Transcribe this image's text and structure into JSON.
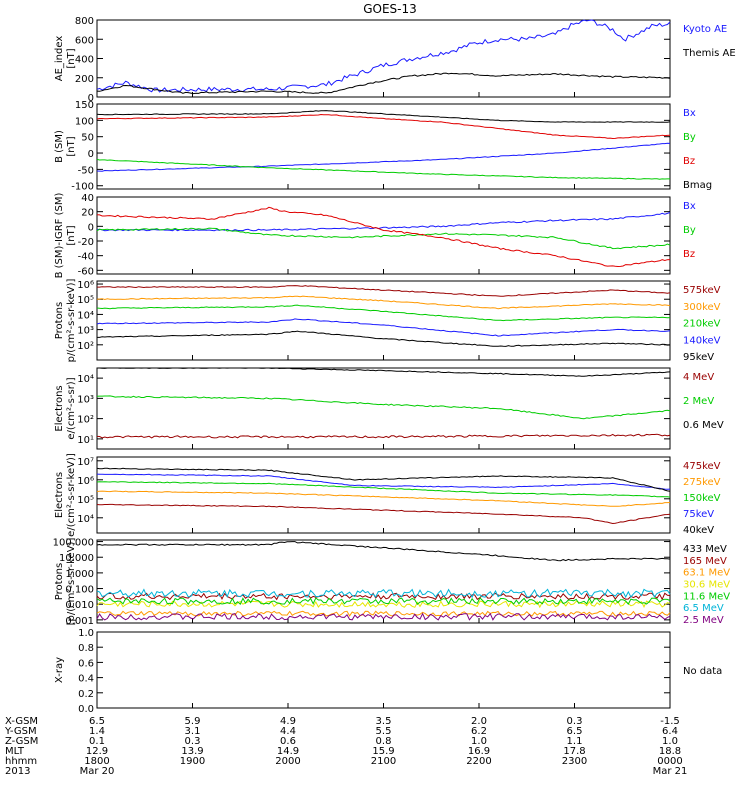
{
  "title": "GOES-13",
  "colors": {
    "black": "#000000",
    "blue": "#1a1aff",
    "red": "#e00000",
    "green": "#00cc00",
    "orange": "#ff9900",
    "darkred": "#990000",
    "yellow": "#e6e600",
    "cyan": "#00b4d8",
    "purple": "#800080",
    "navy": "#0000aa"
  },
  "chart_data": [
    {
      "id": "ae",
      "type": "line",
      "ylabel": [
        "AE_index",
        "[nT]"
      ],
      "ylim": [
        0,
        800
      ],
      "yticks": [
        {
          "v": 0,
          "t": "0"
        },
        {
          "v": 200,
          "t": "200"
        },
        {
          "v": 400,
          "t": "400"
        },
        {
          "v": 600,
          "t": "600"
        },
        {
          "v": 800,
          "t": "800"
        }
      ],
      "series": [
        {
          "name": "Kyoto AE",
          "color": "blue",
          "noise": 25,
          "x": [
            0,
            0.05,
            0.1,
            0.2,
            0.3,
            0.4,
            0.5,
            0.55,
            0.62,
            0.66,
            0.7,
            0.75,
            0.8,
            0.83,
            0.86,
            0.9,
            0.92,
            0.95,
            0.97,
            1
          ],
          "y": [
            80,
            150,
            70,
            80,
            80,
            130,
            330,
            400,
            480,
            560,
            600,
            600,
            650,
            750,
            800,
            700,
            600,
            680,
            740,
            760
          ]
        },
        {
          "name": "Themis AE",
          "color": "black",
          "noise": 8,
          "x": [
            0,
            0.05,
            0.15,
            0.3,
            0.4,
            0.48,
            0.55,
            0.62,
            0.7,
            0.8,
            0.9,
            1
          ],
          "y": [
            60,
            120,
            40,
            60,
            40,
            150,
            220,
            250,
            220,
            240,
            210,
            200
          ]
        }
      ]
    },
    {
      "id": "bsm",
      "type": "line",
      "ylabel": [
        "B (SM)",
        "[nT]"
      ],
      "ylim": [
        -110,
        150
      ],
      "yticks": [
        {
          "v": -100,
          "t": "-100"
        },
        {
          "v": -50,
          "t": "-50"
        },
        {
          "v": 0,
          "t": "0"
        },
        {
          "v": 50,
          "t": "50"
        },
        {
          "v": 100,
          "t": "100"
        },
        {
          "v": 150,
          "t": "150"
        }
      ],
      "series": [
        {
          "name": "Bx",
          "color": "blue",
          "noise": 1,
          "x": [
            0,
            0.3,
            0.6,
            0.8,
            1
          ],
          "y": [
            -55,
            -40,
            -20,
            0,
            30
          ]
        },
        {
          "name": "By",
          "color": "green",
          "noise": 1,
          "x": [
            0,
            0.3,
            0.6,
            0.8,
            1
          ],
          "y": [
            -20,
            -45,
            -65,
            -75,
            -80
          ]
        },
        {
          "name": "Bz",
          "color": "red",
          "noise": 1,
          "x": [
            0,
            0.3,
            0.4,
            0.5,
            0.6,
            0.7,
            0.8,
            0.9,
            1
          ],
          "y": [
            105,
            110,
            118,
            105,
            95,
            75,
            55,
            45,
            55
          ]
        },
        {
          "name": "Bmag",
          "color": "black",
          "noise": 1,
          "x": [
            0,
            0.3,
            0.4,
            0.5,
            0.6,
            0.7,
            0.8,
            0.9,
            1
          ],
          "y": [
            118,
            120,
            130,
            120,
            110,
            100,
            95,
            95,
            95
          ]
        }
      ]
    },
    {
      "id": "bdiff",
      "type": "line",
      "ylabel": [
        "B (SM)-IGRF (SM)",
        "[nT]"
      ],
      "ylim": [
        -65,
        40
      ],
      "yticks": [
        {
          "v": -60,
          "t": "-60"
        },
        {
          "v": -40,
          "t": "-40"
        },
        {
          "v": -20,
          "t": "-20"
        },
        {
          "v": 0,
          "t": "0"
        },
        {
          "v": 20,
          "t": "20"
        },
        {
          "v": 40,
          "t": "40"
        }
      ],
      "series": [
        {
          "name": "Bx",
          "color": "blue",
          "noise": 1,
          "x": [
            0,
            0.3,
            0.5,
            0.6,
            0.7,
            0.8,
            0.9,
            1
          ],
          "y": [
            -5,
            -5,
            -2,
            0,
            5,
            8,
            10,
            18
          ]
        },
        {
          "name": "By",
          "color": "green",
          "noise": 1,
          "x": [
            0,
            0.2,
            0.3,
            0.45,
            0.6,
            0.7,
            0.8,
            0.9,
            1
          ],
          "y": [
            -5,
            -3,
            -12,
            -15,
            -10,
            -12,
            -15,
            -30,
            -25
          ]
        },
        {
          "name": "Bz",
          "color": "red",
          "noise": 1,
          "x": [
            0,
            0.2,
            0.3,
            0.33,
            0.4,
            0.5,
            0.6,
            0.7,
            0.8,
            0.9,
            1
          ],
          "y": [
            15,
            10,
            25,
            20,
            15,
            -5,
            -15,
            -30,
            -40,
            -55,
            -45
          ]
        }
      ]
    },
    {
      "id": "protons_kev",
      "type": "line",
      "log": true,
      "ylabel": [
        "Protons",
        "p/(cm²-s-sr-keV)]"
      ],
      "ylim": [
        1,
        6.2
      ],
      "yticks": [
        {
          "v": 2,
          "t": "10²"
        },
        {
          "v": 3,
          "t": "10³"
        },
        {
          "v": 4,
          "t": "10⁴"
        },
        {
          "v": 5,
          "t": "10⁵"
        },
        {
          "v": 6,
          "t": "10⁶"
        }
      ],
      "series": [
        {
          "name": "575keV",
          "color": "darkred",
          "noise": 0.03,
          "x": [
            0,
            0.3,
            0.35,
            0.5,
            0.7,
            0.9,
            1
          ],
          "y": [
            5.8,
            5.8,
            5.9,
            5.6,
            5.2,
            5.6,
            5.4
          ]
        },
        {
          "name": "300keV",
          "color": "orange",
          "noise": 0.03,
          "x": [
            0,
            0.3,
            0.35,
            0.5,
            0.7,
            0.9,
            1
          ],
          "y": [
            5.0,
            5.1,
            5.2,
            4.9,
            4.4,
            4.7,
            4.6
          ]
        },
        {
          "name": "210keV",
          "color": "green",
          "noise": 0.03,
          "x": [
            0,
            0.3,
            0.35,
            0.5,
            0.7,
            0.9,
            1
          ],
          "y": [
            4.4,
            4.5,
            4.6,
            4.2,
            3.6,
            3.8,
            3.8
          ]
        },
        {
          "name": "140keV",
          "color": "blue",
          "noise": 0.03,
          "x": [
            0,
            0.3,
            0.35,
            0.5,
            0.7,
            0.9,
            1
          ],
          "y": [
            3.4,
            3.5,
            3.7,
            3.3,
            2.6,
            3.0,
            2.9
          ]
        },
        {
          "name": "95keV",
          "color": "black",
          "noise": 0.03,
          "x": [
            0,
            0.3,
            0.35,
            0.5,
            0.7,
            0.9,
            1
          ],
          "y": [
            2.5,
            2.7,
            2.9,
            2.4,
            1.9,
            2.1,
            2.0
          ]
        }
      ]
    },
    {
      "id": "electrons_mev",
      "type": "line",
      "log": true,
      "ylabel": [
        "Electrons",
        "e/(cm²-s-sr)]"
      ],
      "ylim": [
        0.5,
        4.5
      ],
      "yticks": [
        {
          "v": 1,
          "t": "10¹"
        },
        {
          "v": 2,
          "t": "10²"
        },
        {
          "v": 3,
          "t": "10³"
        },
        {
          "v": 4,
          "t": "10⁴"
        }
      ],
      "series": [
        {
          "name": "4 MeV",
          "color": "darkred",
          "noise": 0.05,
          "x": [
            0,
            0.5,
            1
          ],
          "y": [
            1.1,
            1.1,
            1.2
          ]
        },
        {
          "name": "2 MeV",
          "color": "green",
          "noise": 0.03,
          "x": [
            0,
            0.3,
            0.5,
            0.7,
            0.85,
            1
          ],
          "y": [
            3.1,
            3.0,
            2.7,
            2.5,
            2.0,
            2.4
          ]
        },
        {
          "name": "0.6 MeV",
          "color": "black",
          "noise": 0.02,
          "x": [
            0,
            0.3,
            0.6,
            0.85,
            1
          ],
          "y": [
            4.5,
            4.5,
            4.3,
            4.1,
            4.3
          ]
        }
      ]
    },
    {
      "id": "electrons_kev",
      "type": "line",
      "log": true,
      "ylabel": [
        "Electrons",
        "e/(cm²-s-sr-keV)]"
      ],
      "ylim": [
        3.2,
        7.2
      ],
      "yticks": [
        {
          "v": 4,
          "t": "10⁴"
        },
        {
          "v": 5,
          "t": "10⁵"
        },
        {
          "v": 6,
          "t": "10⁶"
        },
        {
          "v": 7,
          "t": "10⁷"
        }
      ],
      "series": [
        {
          "name": "475keV",
          "color": "darkred",
          "noise": 0.02,
          "x": [
            0,
            0.3,
            0.7,
            0.85,
            0.9,
            1
          ],
          "y": [
            4.7,
            4.6,
            4.2,
            4.0,
            3.7,
            4.2
          ]
        },
        {
          "name": "275keV",
          "color": "orange",
          "noise": 0.02,
          "x": [
            0,
            0.3,
            0.7,
            0.9,
            1
          ],
          "y": [
            5.4,
            5.3,
            4.9,
            4.6,
            4.8
          ]
        },
        {
          "name": "150keV",
          "color": "green",
          "noise": 0.02,
          "x": [
            0,
            0.3,
            0.7,
            0.9,
            1
          ],
          "y": [
            5.9,
            5.8,
            5.3,
            5.2,
            5.1
          ]
        },
        {
          "name": "75keV",
          "color": "blue",
          "noise": 0.02,
          "x": [
            0,
            0.3,
            0.45,
            0.7,
            0.9,
            1
          ],
          "y": [
            6.3,
            6.2,
            5.7,
            5.6,
            5.8,
            5.5
          ]
        },
        {
          "name": "40keV",
          "color": "black",
          "noise": 0.02,
          "x": [
            0,
            0.3,
            0.45,
            0.7,
            0.9,
            1
          ],
          "y": [
            6.6,
            6.5,
            6.0,
            6.2,
            6.1,
            5.4
          ]
        }
      ]
    },
    {
      "id": "protons_mev",
      "type": "line",
      "log": true,
      "ylabel": [
        "Protons",
        "[p/(cm²-s-sr-keV)]"
      ],
      "ylim": [
        -3.2,
        2.1
      ],
      "yticks": [
        {
          "v": -3,
          "t": "0.001"
        },
        {
          "v": -2,
          "t": "0.010"
        },
        {
          "v": -1,
          "t": "0.100"
        },
        {
          "v": 0,
          "t": "1.000"
        },
        {
          "v": 1,
          "t": "10.000"
        },
        {
          "v": 2,
          "t": "100.000"
        }
      ],
      "series": [
        {
          "name": "433 MeV",
          "color": "black",
          "noise": 0.04,
          "x": [
            0,
            0.3,
            0.33,
            0.5,
            0.7,
            0.8,
            0.9,
            1
          ],
          "y": [
            1.8,
            1.8,
            2.0,
            1.6,
            1.1,
            0.8,
            0.9,
            0.9
          ]
        },
        {
          "name": "165 MeV",
          "color": "darkred",
          "noise": 0.2,
          "x": [
            0,
            1
          ],
          "y": [
            -1.5,
            -1.5
          ]
        },
        {
          "name": "63.1 MeV",
          "color": "orange",
          "noise": 0.15,
          "x": [
            0,
            1
          ],
          "y": [
            -2.6,
            -2.6
          ]
        },
        {
          "name": "30.6 MeV",
          "color": "yellow",
          "noise": 0.2,
          "x": [
            0,
            1
          ],
          "y": [
            -2.0,
            -2.0
          ]
        },
        {
          "name": "11.6 MeV",
          "color": "green",
          "noise": 0.2,
          "x": [
            0,
            1
          ],
          "y": [
            -1.8,
            -1.8
          ]
        },
        {
          "name": "6.5 MeV",
          "color": "cyan",
          "noise": 0.25,
          "x": [
            0,
            1
          ],
          "y": [
            -1.3,
            -1.3
          ]
        },
        {
          "name": "2.5 MeV",
          "color": "purple",
          "noise": 0.2,
          "x": [
            0,
            1
          ],
          "y": [
            -2.8,
            -2.8
          ]
        }
      ]
    },
    {
      "id": "xray",
      "type": "line",
      "ylabel": [
        "X-ray",
        ""
      ],
      "ylim": [
        0,
        1
      ],
      "yticks": [
        {
          "v": 0,
          "t": "0.0"
        },
        {
          "v": 0.2,
          "t": "0.2"
        },
        {
          "v": 0.4,
          "t": "0.4"
        },
        {
          "v": 0.6,
          "t": "0.6"
        },
        {
          "v": 0.8,
          "t": "0.8"
        },
        {
          "v": 1,
          "t": "1.0"
        }
      ],
      "series": [],
      "note": "No data"
    }
  ],
  "xaxis": {
    "row_labels": [
      "X-GSM",
      "Y-GSM",
      "Z-GSM",
      "MLT",
      "hhmm",
      "2013"
    ],
    "columns": [
      {
        "vals": [
          "6.5",
          "1.4",
          "0.1",
          "12.9",
          "1800",
          "Mar 20"
        ]
      },
      {
        "vals": [
          "5.9",
          "3.1",
          "0.3",
          "13.9",
          "1900",
          ""
        ]
      },
      {
        "vals": [
          "4.9",
          "4.4",
          "0.6",
          "14.9",
          "2000",
          ""
        ]
      },
      {
        "vals": [
          "3.5",
          "5.5",
          "0.8",
          "15.9",
          "2100",
          ""
        ]
      },
      {
        "vals": [
          "2.0",
          "6.2",
          "1.0",
          "16.9",
          "2200",
          ""
        ]
      },
      {
        "vals": [
          "0.3",
          "6.5",
          "1.1",
          "17.8",
          "2300",
          ""
        ]
      },
      {
        "vals": [
          "-1.5",
          "6.4",
          "1.0",
          "18.8",
          "0000",
          "Mar 21"
        ]
      }
    ]
  }
}
